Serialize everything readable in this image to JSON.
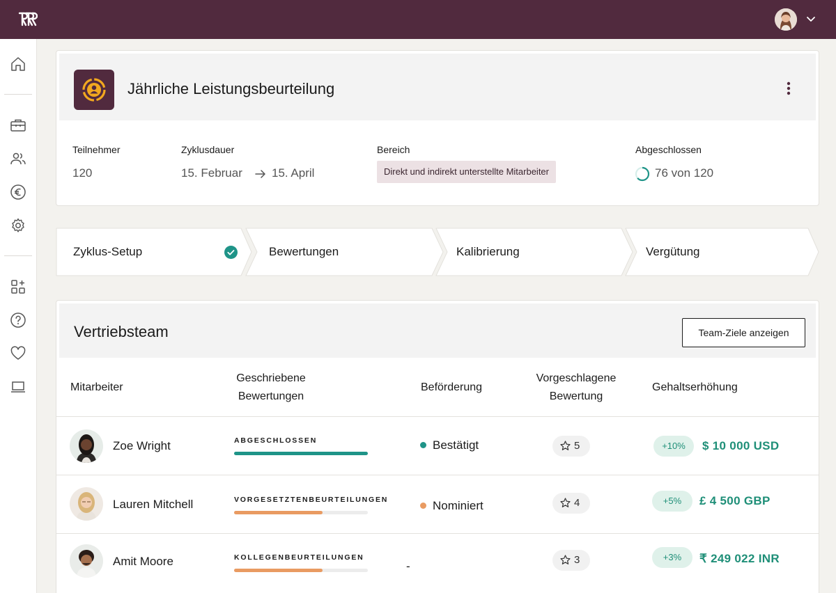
{
  "app": {
    "accent": "#512a3e",
    "success": "#1f9488",
    "warning": "#e99b62"
  },
  "sidebar": {
    "items": [
      {
        "icon": "home-icon"
      },
      {
        "icon": "briefcase-icon"
      },
      {
        "icon": "users-icon"
      },
      {
        "icon": "euro-icon"
      },
      {
        "icon": "settings-icon"
      },
      {
        "icon": "apps-icon"
      },
      {
        "icon": "help-icon"
      },
      {
        "icon": "heart-icon"
      },
      {
        "icon": "laptop-icon"
      }
    ]
  },
  "cycle": {
    "title": "Jährliche Leistungsbeurteilung",
    "participants_label": "Teilnehmer",
    "participants_value": "120",
    "duration_label": "Zyklusdauer",
    "duration_start": "15. Februar",
    "duration_end": "15. April",
    "scope_label": "Bereich",
    "scope_value": "Direkt und indirekt unterstellte Mitarbeiter",
    "completed_label": "Abgeschlossen",
    "completed_value": "76 von 120",
    "completed_fraction": 0.633
  },
  "steps": [
    {
      "label": "Zyklus-Setup",
      "done": true
    },
    {
      "label": "Bewertungen",
      "done": false
    },
    {
      "label": "Kalibrierung",
      "done": false
    },
    {
      "label": "Vergütung",
      "done": false
    }
  ],
  "team": {
    "title": "Vertriebsteam",
    "goals_button": "Team-Ziele anzeigen",
    "columns": {
      "employee": "Mitarbeiter",
      "reviews_1": "Geschriebene",
      "reviews_2": "Bewertungen",
      "promotion": "Beförderung",
      "rating_1": "Vorgeschlagene",
      "rating_2": "Bewertung",
      "raise": "Gehaltserhöhung"
    },
    "rows": [
      {
        "name": "Zoe Wright",
        "review_status": "ABGESCHLOSSEN",
        "review_progress": 1.0,
        "promotion": "Bestätigt",
        "promotion_color": "#1f9488",
        "rating": "5",
        "raise_pct": "+10%",
        "salary": "$ 10 000 USD"
      },
      {
        "name": "Lauren Mitchell",
        "review_status": "VORGESETZTENBEURTEILUNGEN",
        "review_progress": 0.66,
        "promotion": "Nominiert",
        "promotion_color": "#e99b62",
        "rating": "4",
        "raise_pct": "+5%",
        "salary": "£ 4 500 GBP"
      },
      {
        "name": "Amit Moore",
        "review_status": "KOLLEGENBEURTEILUNGEN",
        "review_progress": 0.66,
        "promotion": "-",
        "promotion_color": "",
        "rating": "3",
        "raise_pct": "+3%",
        "salary": "₹ 249 022 INR"
      }
    ]
  }
}
